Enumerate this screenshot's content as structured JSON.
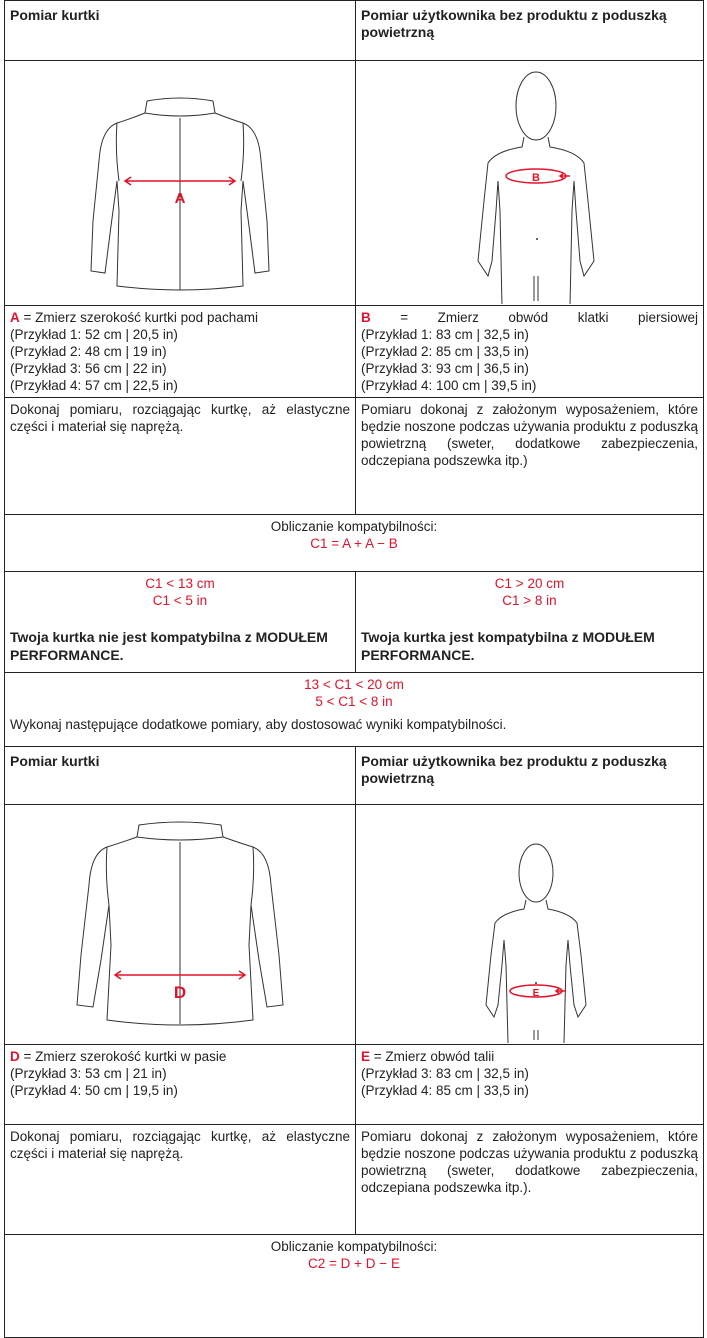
{
  "rows": [
    {
      "cells": [
        {
          "text": "Pomiar kurtki"
        },
        {
          "text": "Pomiar użytkownika bez produktu z poduszką powietrzną"
        }
      ]
    },
    {
      "cells": [
        {
          "marker": "A"
        },
        {
          "marker": "B"
        }
      ]
    },
    {
      "cells": [
        {
          "key": "A",
          "text": "= Zmierz szerokość kurtki pod pachami",
          "lines": [
            "(Przykład 1: 52 cm | 20,5 in)",
            "(Przykład 2: 48 cm | 19 in)",
            "(Przykład 3: 56 cm | 22 in)",
            "(Przykład 4: 57 cm | 22,5 in)"
          ]
        },
        {
          "key": "B",
          "text": "= Zmierz obwód klatki piersiowej",
          "lines": [
            "(Przykład 1: 83 cm | 32,5 in)",
            "(Przykład 2: 85 cm | 33,5 in)",
            "(Przykład 3: 93 cm | 36,5 in)",
            "(Przykład 4: 100 cm | 39,5 in)"
          ]
        }
      ]
    },
    {
      "cells": [
        {
          "text": "Dokonaj pomiaru, rozciągając kurtkę, aż elastyczne części i materiał się naprężą."
        },
        {
          "text": "Pomiaru dokonaj z założonym wyposażeniem, które będzie noszone podczas używania produktu z poduszką powietrzną (sweter, dodatkowe zabezpieczenia, odczepiana podszewka itp.)"
        }
      ]
    },
    {
      "cells": [
        {
          "text": "Obliczanie kompatybilności:",
          "formula": "C1 = A + A − B"
        }
      ]
    },
    {
      "cells": [
        {
          "conditions": [
            "C1 < 13 cm",
            "C1 < 5 in"
          ],
          "text": "Twoja kurtka nie jest kompatybilna z MODUŁEM PERFORMANCE."
        },
        {
          "conditions": [
            "C1 > 20 cm",
            "C1 > 8 in"
          ],
          "text": "Twoja kurtka jest kompatybilna z MODUŁEM PERFORMANCE."
        }
      ]
    },
    {
      "cells": [
        {
          "conditions": [
            "13 < C1 < 20 cm",
            "5 < C1 < 8 in"
          ],
          "text": "Wykonaj następujące dodatkowe pomiary, aby dostosować wyniki kompatybilności."
        }
      ]
    },
    {
      "cells": [
        {
          "text": "Pomiar kurtki"
        },
        {
          "text": "Pomiar użytkownika bez produktu z poduszką powietrzną"
        }
      ]
    },
    {
      "cells": [
        {
          "marker": "D"
        },
        {
          "marker": "E"
        }
      ]
    },
    {
      "cells": [
        {
          "key": "D",
          "text": "= Zmierz szerokość kurtki w pasie",
          "lines": [
            "(Przykład 3: 53 cm | 21 in)",
            "(Przykład 4: 50 cm | 19,5 in)"
          ]
        },
        {
          "key": "E",
          "text": "= Zmierz obwód talii",
          "lines": [
            "(Przykład 3: 83 cm | 32,5 in)",
            "(Przykład 4: 85 cm | 33,5 in)"
          ]
        }
      ]
    },
    {
      "cells": [
        {
          "text": "Dokonaj pomiaru, rozciągając kurtkę, aż elastyczne części i materiał się naprężą."
        },
        {
          "text": "Pomiaru dokonaj z założonym wyposażeniem, które będzie noszone podczas używania produktu z poduszką powietrzną (sweter, dodatkowe zabezpieczenia, odczepiana podszewka itp.)."
        }
      ]
    },
    {
      "cells": [
        {
          "text": "Obliczanie kompatybilności:",
          "formula": "C2 = D + D − E"
        }
      ]
    }
  ]
}
